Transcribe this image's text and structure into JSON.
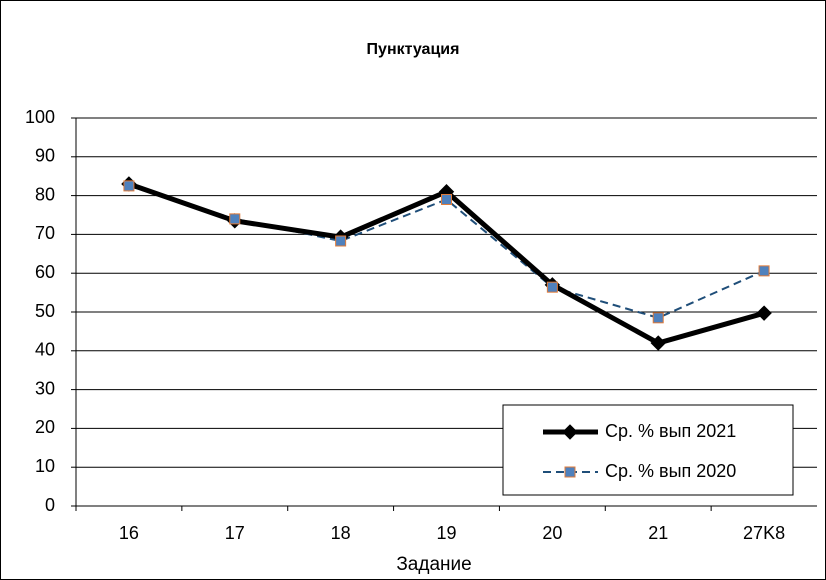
{
  "chart_data": {
    "type": "line",
    "title": "Пунктуация",
    "x_label": "Задание",
    "categories": [
      "16",
      "17",
      "18",
      "19",
      "20",
      "21",
      "27K8"
    ],
    "series": [
      {
        "name": "Ср. % вып 2021",
        "color": "#000000",
        "marker": "diamond",
        "dashed": false,
        "values": [
          83,
          73.5,
          69.3,
          81,
          57,
          42,
          49.7
        ]
      },
      {
        "name": "Ср. % вып 2020",
        "color": "#1f4e79",
        "marker_fill": "#4f81bd",
        "marker_edge": "#e07b39",
        "marker": "square",
        "dashed": true,
        "values": [
          82.5,
          74,
          68.3,
          79,
          56.4,
          48.5,
          60.6
        ]
      }
    ],
    "ylim": [
      0,
      100
    ],
    "yticks": [
      0,
      10,
      20,
      30,
      40,
      50,
      60,
      70,
      80,
      90,
      100
    ],
    "grid": true,
    "legend": "lower right"
  }
}
